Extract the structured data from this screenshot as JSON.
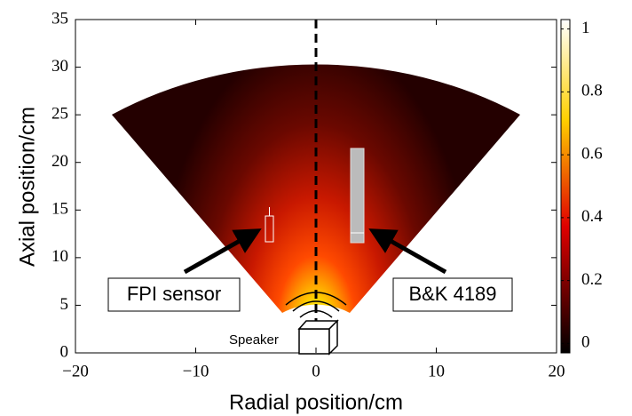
{
  "chart_data": {
    "type": "heatmap",
    "xlabel": "Radial position/cm",
    "ylabel": "Axial position/cm",
    "xlim": [
      -20,
      20
    ],
    "xticks": [
      {
        "value": -20,
        "label": "−20"
      },
      {
        "value": -10,
        "label": "−10"
      },
      0,
      10,
      20
    ],
    "ylim": [
      0,
      35
    ],
    "yticks": [
      0,
      5,
      10,
      15,
      20,
      25,
      30,
      35
    ],
    "colorbar": {
      "lim": [
        -0.03,
        1.03
      ],
      "ticks": [
        0,
        0.2,
        0.4,
        0.6,
        0.8,
        1
      ]
    },
    "annotations": [
      "FPI sensor",
      "B&K 4189",
      "Speaker"
    ]
  }
}
